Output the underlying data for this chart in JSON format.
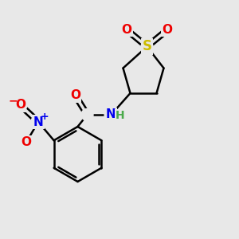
{
  "background_color": "#e8e8e8",
  "atom_colors": {
    "C": "#000000",
    "H": "#4aaa4a",
    "N": "#0000ee",
    "O": "#ee0000",
    "S": "#ccbb00",
    "N_plus": "#0000ee",
    "O_minus": "#ee0000"
  },
  "bond_color": "#000000",
  "bond_width": 1.8,
  "figsize": [
    3.0,
    3.0
  ],
  "dpi": 100,
  "xlim": [
    0,
    10
  ],
  "ylim": [
    0,
    10
  ],
  "font_size": 11,
  "font_size_small": 9
}
